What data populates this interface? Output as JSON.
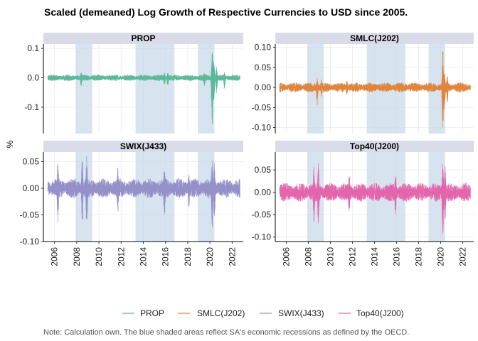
{
  "chart_data": {
    "type": "line",
    "title": "Scaled (demeaned) Log Growth of Respective Currencies to USD since 2005.",
    "ylabel": "%",
    "caption": "Note: Calculation own. The blue shaded areas reflect SA's economic recessions as defined by the OECD.",
    "x_range": [
      2005,
      2023
    ],
    "x_ticks": [
      "2006",
      "2008",
      "2010",
      "2012",
      "2014",
      "2016",
      "2018",
      "2020",
      "2022"
    ],
    "recession_shading": [
      [
        2007.9,
        2009.4
      ],
      [
        2013.3,
        2016.8
      ],
      [
        2018.9,
        2020.4
      ]
    ],
    "recession_color": "#c9d9e8",
    "strip_color": "#d9dbe8",
    "legend_position": "bottom",
    "panels": [
      {
        "name": "PROP",
        "color": "#5bb89a",
        "ylim": [
          -0.19,
          0.115
        ],
        "y_ticks": [
          0.1,
          0.0,
          -0.1
        ],
        "y_tick_labels": [
          "0.1",
          "0.0",
          "-0.1"
        ],
        "base_amplitude": 0.008,
        "events": [
          {
            "year": 2008.4,
            "min": -0.03,
            "max": 0.02
          },
          {
            "year": 2015.9,
            "min": -0.03,
            "max": 0.02
          },
          {
            "year": 2016.2,
            "min": -0.03,
            "max": 0.018
          },
          {
            "year": 2019.5,
            "min": -0.03,
            "max": 0.02
          },
          {
            "year": 2020.2,
            "min": -0.18,
            "max": 0.1
          },
          {
            "year": 2020.35,
            "min": -0.1,
            "max": 0.07
          },
          {
            "year": 2020.6,
            "min": -0.06,
            "max": 0.04
          },
          {
            "year": 2021.3,
            "min": -0.04,
            "max": 0.02
          }
        ]
      },
      {
        "name": "SMLC(J202)",
        "color": "#e0853e",
        "ylim": [
          -0.115,
          0.108
        ],
        "y_ticks": [
          0.1,
          0.05,
          0.0,
          -0.05,
          -0.1
        ],
        "y_tick_labels": [
          "0.10",
          "0.05",
          "0.00",
          "-0.05",
          "-0.10"
        ],
        "base_amplitude": 0.009,
        "events": [
          {
            "year": 2008.8,
            "min": -0.045,
            "max": 0.025
          },
          {
            "year": 2009.2,
            "min": -0.025,
            "max": 0.02
          },
          {
            "year": 2011.5,
            "min": -0.02,
            "max": 0.02
          },
          {
            "year": 2020.2,
            "min": -0.11,
            "max": 0.1
          },
          {
            "year": 2020.35,
            "min": -0.06,
            "max": 0.04
          },
          {
            "year": 2020.6,
            "min": -0.04,
            "max": 0.03
          }
        ]
      },
      {
        "name": "SWIX(J433)",
        "color": "#9590c9",
        "ylim": [
          -0.1,
          0.068
        ],
        "y_ticks": [
          0.05,
          0.0,
          -0.05,
          -0.1
        ],
        "y_tick_labels": [
          "0.05",
          "0.00",
          "-0.05",
          "-0.10"
        ],
        "base_amplitude": 0.014,
        "events": [
          {
            "year": 2006.3,
            "min": -0.07,
            "max": 0.05
          },
          {
            "year": 2008.5,
            "min": -0.07,
            "max": 0.06
          },
          {
            "year": 2008.9,
            "min": -0.08,
            "max": 0.06
          },
          {
            "year": 2011.7,
            "min": -0.05,
            "max": 0.04
          },
          {
            "year": 2015.9,
            "min": -0.06,
            "max": 0.045
          },
          {
            "year": 2018.1,
            "min": -0.04,
            "max": 0.03
          },
          {
            "year": 2020.2,
            "min": -0.095,
            "max": 0.065
          },
          {
            "year": 2020.4,
            "min": -0.06,
            "max": 0.05
          }
        ]
      },
      {
        "name": "Top40(J200)",
        "color": "#e366ad",
        "ylim": [
          -0.11,
          0.09
        ],
        "y_ticks": [
          0.05,
          0.0,
          -0.05,
          -0.1
        ],
        "y_tick_labels": [
          "0.05",
          "0.00",
          "-0.05",
          "-0.10"
        ],
        "base_amplitude": 0.016,
        "events": [
          {
            "year": 2008.5,
            "min": -0.075,
            "max": 0.06
          },
          {
            "year": 2008.9,
            "min": -0.08,
            "max": 0.07
          },
          {
            "year": 2011.7,
            "min": -0.05,
            "max": 0.045
          },
          {
            "year": 2015.9,
            "min": -0.05,
            "max": 0.045
          },
          {
            "year": 2020.2,
            "min": -0.105,
            "max": 0.08
          },
          {
            "year": 2020.4,
            "min": -0.07,
            "max": 0.06
          }
        ]
      }
    ],
    "legend": [
      {
        "label": "PROP",
        "color": "#5bb89a"
      },
      {
        "label": "SMLC(J202)",
        "color": "#e0853e"
      },
      {
        "label": "SWIX(J433)",
        "color": "#9590c9"
      },
      {
        "label": "Top40(J200)",
        "color": "#e366ad"
      }
    ]
  }
}
